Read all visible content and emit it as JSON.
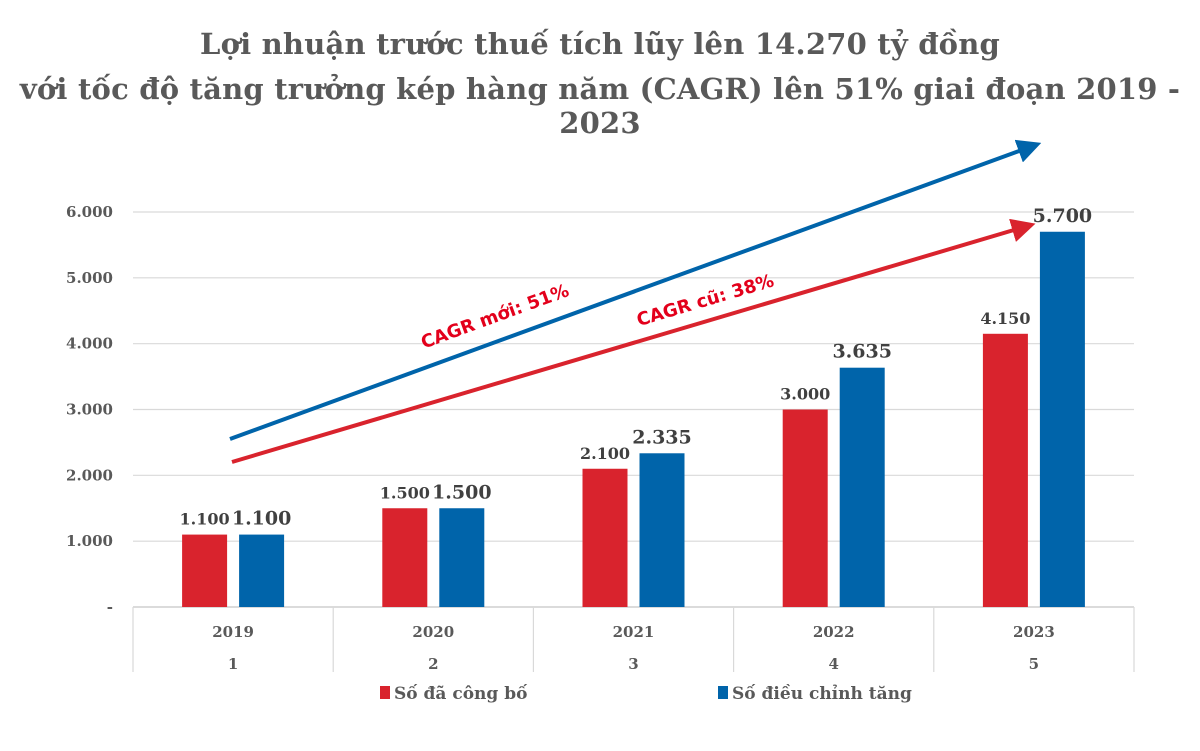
{
  "chart_data": {
    "type": "bar",
    "title": [
      "Lợi nhuận trước thuế tích lũy lên 14.270 tỷ đồng",
      "với tốc độ tăng trưởng kép hàng năm (CAGR) lên 51% giai đoạn 2019 - 2023"
    ],
    "categories": [
      "2019",
      "2020",
      "2021",
      "2022",
      "2023"
    ],
    "category_index": [
      "1",
      "2",
      "3",
      "4",
      "5"
    ],
    "series": [
      {
        "name": "Số đã công bố",
        "color": "#d9232d",
        "values": [
          1100,
          1500,
          2100,
          3000,
          4150
        ],
        "labels": [
          "1.100",
          "1.500",
          "2.100",
          "3.000",
          "4.150"
        ]
      },
      {
        "name": "Số điều chỉnh tăng",
        "color": "#0064aa",
        "values": [
          1100,
          1500,
          2335,
          3635,
          5700
        ],
        "labels": [
          "1.100",
          "1.500",
          "2.335",
          "3.635",
          "5.700"
        ]
      }
    ],
    "ylim": [
      0,
      6000
    ],
    "yticks": [
      0,
      1000,
      2000,
      3000,
      4000,
      5000,
      6000
    ],
    "ytick_labels": [
      "-",
      "1.000",
      "2.000",
      "3.000",
      "4.000",
      "5.000",
      "6.000"
    ],
    "grid": true,
    "legend": "bottom",
    "annotations": [
      {
        "text": "CAGR mới: 51%",
        "color": "#0064aa",
        "text_color": "#e3001b"
      },
      {
        "text": "CAGR cũ: 38%",
        "color": "#d9232d",
        "text_color": "#e3001b"
      }
    ]
  }
}
